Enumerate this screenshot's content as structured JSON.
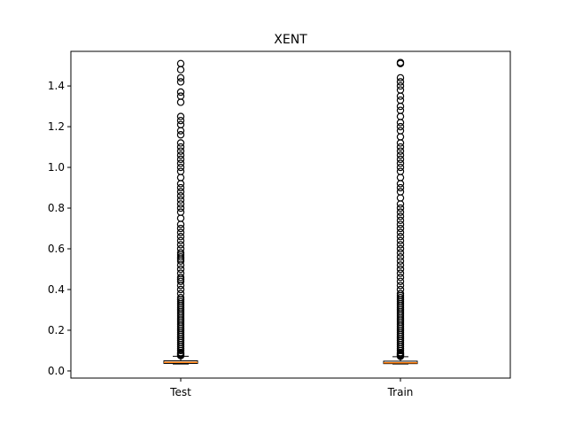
{
  "chart_data": {
    "type": "boxplot",
    "title": "XENT",
    "xlabel": "",
    "ylabel": "",
    "categories": [
      "Test",
      "Train"
    ],
    "ylim": [
      -0.035,
      1.57
    ],
    "yticks": [
      "0.0",
      "0.2",
      "0.4",
      "0.6",
      "0.8",
      "1.0",
      "1.2",
      "1.4"
    ],
    "grid": false,
    "legend": "none",
    "boxes": [
      {
        "name": "Test",
        "whisker_low": 0.034,
        "q1": 0.037,
        "median": 0.042,
        "q3": 0.05,
        "whisker_high": 0.072,
        "outliers": [
          0.075,
          0.08,
          0.085,
          0.09,
          0.1,
          0.11,
          0.12,
          0.13,
          0.14,
          0.15,
          0.16,
          0.17,
          0.18,
          0.19,
          0.2,
          0.21,
          0.22,
          0.23,
          0.24,
          0.25,
          0.26,
          0.27,
          0.28,
          0.29,
          0.3,
          0.31,
          0.32,
          0.33,
          0.34,
          0.35,
          0.36,
          0.38,
          0.4,
          0.42,
          0.44,
          0.45,
          0.46,
          0.48,
          0.5,
          0.52,
          0.54,
          0.55,
          0.56,
          0.57,
          0.58,
          0.6,
          0.62,
          0.64,
          0.66,
          0.68,
          0.7,
          0.72,
          0.75,
          0.78,
          0.8,
          0.82,
          0.84,
          0.86,
          0.88,
          0.9,
          0.92,
          0.95,
          0.98,
          1.0,
          1.02,
          1.04,
          1.06,
          1.08,
          1.1,
          1.12,
          1.16,
          1.18,
          1.21,
          1.23,
          1.25,
          1.32,
          1.35,
          1.37,
          1.42,
          1.44,
          1.48,
          1.51
        ]
      },
      {
        "name": "Train",
        "whisker_low": 0.034,
        "q1": 0.036,
        "median": 0.04,
        "q3": 0.048,
        "whisker_high": 0.07,
        "outliers": [
          0.072,
          0.076,
          0.08,
          0.085,
          0.09,
          0.1,
          0.11,
          0.12,
          0.13,
          0.14,
          0.15,
          0.16,
          0.17,
          0.18,
          0.19,
          0.2,
          0.21,
          0.22,
          0.23,
          0.24,
          0.25,
          0.26,
          0.27,
          0.28,
          0.29,
          0.3,
          0.31,
          0.32,
          0.33,
          0.34,
          0.35,
          0.36,
          0.37,
          0.38,
          0.4,
          0.42,
          0.44,
          0.46,
          0.48,
          0.5,
          0.52,
          0.54,
          0.56,
          0.58,
          0.6,
          0.62,
          0.64,
          0.66,
          0.68,
          0.7,
          0.72,
          0.74,
          0.76,
          0.78,
          0.8,
          0.82,
          0.85,
          0.88,
          0.9,
          0.92,
          0.95,
          0.98,
          1.0,
          1.02,
          1.04,
          1.06,
          1.08,
          1.1,
          1.12,
          1.15,
          1.18,
          1.2,
          1.22,
          1.25,
          1.28,
          1.3,
          1.33,
          1.35,
          1.38,
          1.4,
          1.42,
          1.44,
          1.51,
          1.515
        ]
      }
    ],
    "colors": {
      "box": "#000000",
      "median": "#ff7f0e",
      "outlier": "#000000",
      "axes": "#000000",
      "background": "#ffffff"
    }
  }
}
